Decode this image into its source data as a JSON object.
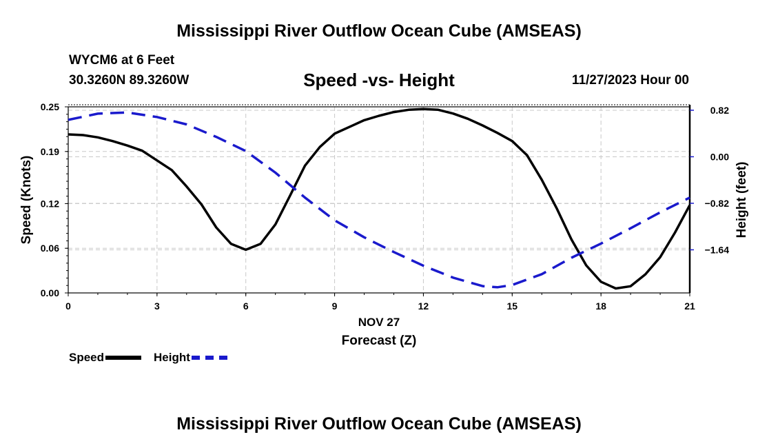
{
  "header": {
    "title": "Mississippi River Outflow Ocean Cube (AMSEAS)",
    "station": "WYCM6 at 6 Feet",
    "coords": "30.3260N  89.3260W",
    "subtitle": "Speed -vs- Height",
    "datetime": "11/27/2023 Hour 00"
  },
  "footer": {
    "title": "Mississippi River Outflow Ocean Cube (AMSEAS)"
  },
  "legend": {
    "speed": "Speed",
    "height": "Height"
  },
  "chart_data": {
    "type": "line",
    "title": "Speed -vs- Height",
    "xlabel": "Forecast (Z)",
    "xlabel_date": "NOV 27",
    "ylabel": "Speed (Knots)",
    "y2label": "Height (feet)",
    "xlim": [
      0,
      21
    ],
    "ylim": [
      0,
      0.25
    ],
    "y2lim": [
      -2.4,
      0.88
    ],
    "grid": true,
    "x_ticks": [
      0,
      3,
      6,
      9,
      12,
      15,
      18,
      21
    ],
    "x_tick_labels": [
      "0",
      "3",
      "6",
      "9",
      "12",
      "15",
      "18",
      "21"
    ],
    "y_ticks": [
      0,
      0.06,
      0.12,
      0.19,
      0.25
    ],
    "y_tick_labels": [
      "0.00",
      "0.06",
      "0.12",
      "0.19",
      "0.25"
    ],
    "y2_ticks": [
      0.82,
      0,
      -0.82,
      -1.64
    ],
    "y2_tick_labels": [
      "0.82",
      "0.00",
      "−0.82",
      "−1.64"
    ],
    "series": [
      {
        "name": "Speed",
        "axis": "left",
        "color": "#000000",
        "dash": "solid",
        "x": [
          0,
          0.5,
          1,
          1.5,
          2,
          2.5,
          3,
          3.5,
          4,
          4.5,
          5,
          5.5,
          6,
          6.5,
          7,
          7.5,
          8,
          8.5,
          9,
          9.5,
          10,
          10.5,
          11,
          11.5,
          12,
          12.5,
          13,
          13.5,
          14,
          14.5,
          15,
          15.5,
          16,
          16.5,
          17,
          17.5,
          18,
          18.5,
          19,
          19.5,
          20,
          20.5,
          21
        ],
        "values": [
          0.213,
          0.212,
          0.209,
          0.204,
          0.198,
          0.191,
          0.178,
          0.165,
          0.143,
          0.119,
          0.088,
          0.066,
          0.058,
          0.066,
          0.092,
          0.131,
          0.171,
          0.196,
          0.214,
          0.223,
          0.232,
          0.238,
          0.243,
          0.246,
          0.247,
          0.246,
          0.241,
          0.234,
          0.225,
          0.215,
          0.204,
          0.185,
          0.152,
          0.114,
          0.072,
          0.037,
          0.015,
          0.006,
          0.009,
          0.025,
          0.048,
          0.081,
          0.118
        ]
      },
      {
        "name": "Height",
        "axis": "right",
        "color": "#1a1acc",
        "dash": "dashed",
        "x": [
          0,
          1,
          2,
          3,
          4,
          5,
          6,
          7,
          8,
          9,
          10,
          11,
          12,
          13,
          14,
          14.5,
          15,
          16,
          17,
          18,
          19,
          20,
          21
        ],
        "values": [
          0.65,
          0.76,
          0.78,
          0.7,
          0.57,
          0.35,
          0.1,
          -0.28,
          -0.72,
          -1.12,
          -1.42,
          -1.68,
          -1.92,
          -2.13,
          -2.28,
          -2.3,
          -2.26,
          -2.07,
          -1.78,
          -1.53,
          -1.26,
          -0.98,
          -0.72
        ]
      }
    ]
  }
}
